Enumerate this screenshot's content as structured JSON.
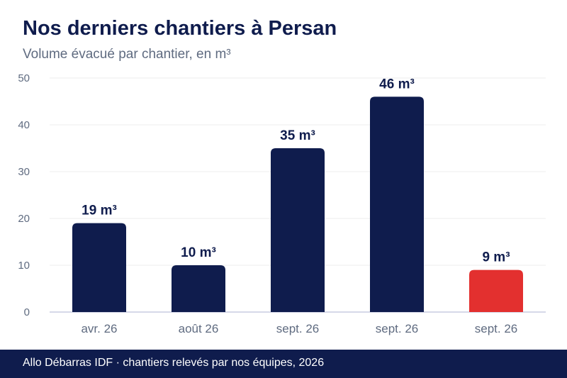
{
  "title": "Nos derniers chantiers à Persan",
  "subtitle": "Volume évacué par chantier, en m³",
  "footer": "Allo Débarras IDF · chantiers relevés par nos équipes, 2026",
  "colors": {
    "bar": "#0f1c4d",
    "highlight": "#e3302f",
    "grid": "#ececec",
    "axis": "#c9cbe0",
    "tick_text": "#5f6b80",
    "label_text": "#0f1c4d"
  },
  "chart_data": {
    "type": "bar",
    "categories": [
      "avr. 26",
      "août 26",
      "sept. 26",
      "sept. 26",
      "sept. 26"
    ],
    "values": [
      19,
      10,
      35,
      46,
      9
    ],
    "value_labels": [
      "19 m³",
      "10 m³",
      "35 m³",
      "46 m³",
      "9 m³"
    ],
    "highlight_index": 4,
    "ylim": [
      0,
      50
    ],
    "yticks": [
      "0",
      "10",
      "20",
      "30",
      "40",
      "50"
    ],
    "grid": true
  }
}
